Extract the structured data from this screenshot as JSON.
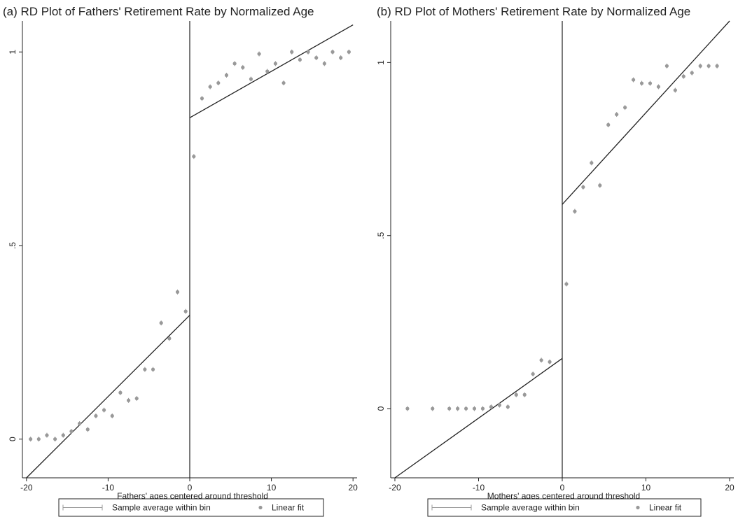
{
  "chart_data": [
    {
      "type": "scatter",
      "title": "(a) RD Plot of Fathers' Retirement Rate by Normalized Age",
      "xlabel": "Fathers' ages centered around threshold",
      "ylabel": "",
      "xlim": [
        -20.5,
        20.5
      ],
      "ylim": [
        -0.1,
        1.08
      ],
      "xticks": [
        "-20",
        "-10",
        "0",
        "10",
        "20"
      ],
      "xtick_values": [
        -20,
        -10,
        0,
        10,
        20
      ],
      "yticks": [
        "0",
        ".5",
        "1"
      ],
      "ytick_values": [
        0,
        0.5,
        1
      ],
      "threshold": 0,
      "series": [
        {
          "x": [
            -19.5,
            -18.5,
            -17.5,
            -16.5,
            -15.5,
            -14.5,
            -13.5,
            -12.5,
            -11.5,
            -10.5,
            -9.5,
            -8.5,
            -7.5,
            -6.5,
            -5.5,
            -4.5,
            -3.5,
            -2.5,
            -1.5,
            -0.5,
            0.5,
            1.5,
            2.5,
            3.5,
            4.5,
            5.5,
            6.5,
            7.5,
            8.5,
            9.5,
            10.5,
            11.5,
            12.5,
            13.5,
            14.5,
            15.5,
            16.5,
            17.5,
            18.5,
            19.5
          ],
          "y": [
            0.0,
            0.0,
            0.01,
            0.0,
            0.01,
            0.02,
            0.04,
            0.025,
            0.06,
            0.075,
            0.06,
            0.12,
            0.1,
            0.105,
            0.18,
            0.18,
            0.3,
            0.26,
            0.38,
            0.33,
            0.73,
            0.88,
            0.91,
            0.92,
            0.94,
            0.97,
            0.96,
            0.93,
            0.995,
            0.95,
            0.97,
            0.92,
            1.0,
            0.98,
            1.0,
            0.985,
            0.97,
            1.0,
            0.985,
            1.0
          ]
        }
      ],
      "fit_left": {
        "x": [
          -20,
          0
        ],
        "y": [
          -0.1,
          0.32
        ]
      },
      "fit_right": {
        "x": [
          0,
          20
        ],
        "y": [
          0.83,
          1.07
        ]
      },
      "legend": [
        "Sample average within bin",
        "Linear fit"
      ],
      "legend_position": "bottom"
    },
    {
      "type": "scatter",
      "title": "(b) RD Plot of Mothers' Retirement Rate by Normalized Age",
      "xlabel": "Mothers' ages centered around threshold",
      "ylabel": "",
      "xlim": [
        -20.5,
        20.5
      ],
      "ylim": [
        -0.2,
        1.12
      ],
      "xticks": [
        "-20",
        "-10",
        "0",
        "10",
        "20"
      ],
      "xtick_values": [
        -20,
        -10,
        0,
        10,
        20
      ],
      "yticks": [
        "0",
        ".5",
        "1"
      ],
      "ytick_values": [
        0,
        0.5,
        1
      ],
      "threshold": 0,
      "series": [
        {
          "x": [
            -18.5,
            -15.5,
            -13.5,
            -12.5,
            -11.5,
            -10.5,
            -9.5,
            -8.5,
            -7.5,
            -6.5,
            -5.5,
            -4.5,
            -3.5,
            -2.5,
            -1.5,
            0.5,
            1.5,
            2.5,
            3.5,
            4.5,
            5.5,
            6.5,
            7.5,
            8.5,
            9.5,
            10.5,
            11.5,
            12.5,
            13.5,
            14.5,
            15.5,
            16.5,
            17.5,
            18.5
          ],
          "y": [
            0.0,
            0.0,
            0.0,
            0.0,
            0.0,
            0.0,
            0.0,
            0.005,
            0.01,
            0.005,
            0.04,
            0.04,
            0.1,
            0.14,
            0.135,
            0.36,
            0.57,
            0.64,
            0.71,
            0.645,
            0.82,
            0.85,
            0.87,
            0.95,
            0.94,
            0.94,
            0.93,
            0.99,
            0.92,
            0.96,
            0.97,
            0.99,
            0.99,
            0.99
          ]
        }
      ],
      "fit_left": {
        "x": [
          -20,
          0
        ],
        "y": [
          -0.2,
          0.145
        ]
      },
      "fit_right": {
        "x": [
          0,
          20
        ],
        "y": [
          0.59,
          1.12
        ]
      },
      "legend": [
        "Sample average within bin",
        "Linear fit"
      ],
      "legend_position": "bottom"
    }
  ]
}
